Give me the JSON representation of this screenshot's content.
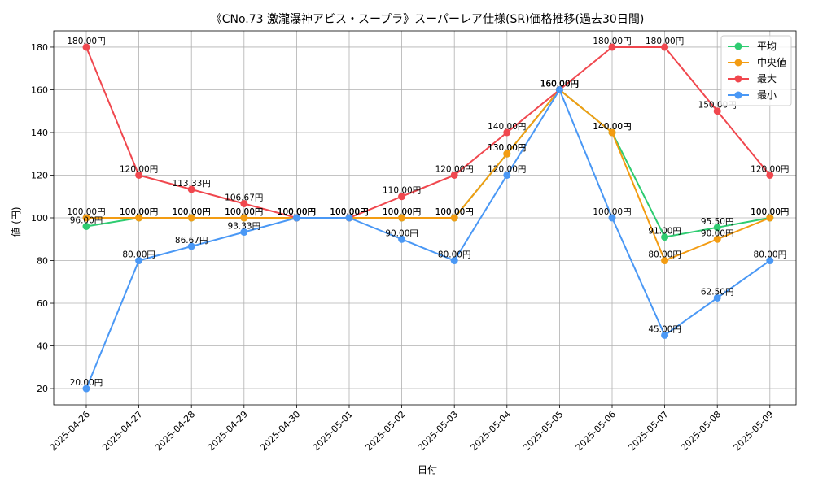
{
  "chart_data": {
    "type": "line",
    "title": "《CNo.73 激瀧瀑神アビス・スープラ》スーパーレア仕様(SR)価格推移(過去30日間)",
    "xlabel": "日付",
    "ylabel": "値 (円)",
    "ylim": [
      12.4,
      187.6
    ],
    "yticks": [
      20,
      40,
      60,
      80,
      100,
      120,
      140,
      160,
      180
    ],
    "grid": true,
    "legend_position": "top-right",
    "value_suffix": "円",
    "categories": [
      "2025-04-26",
      "2025-04-27",
      "2025-04-28",
      "2025-04-29",
      "2025-04-30",
      "2025-05-01",
      "2025-05-02",
      "2025-05-03",
      "2025-05-04",
      "2025-05-05",
      "2025-05-06",
      "2025-05-07",
      "2025-05-08",
      "2025-05-09"
    ],
    "series": [
      {
        "name": "平均",
        "color": "#2ecc71",
        "values": [
          96.0,
          100.0,
          100.0,
          100.0,
          100.0,
          100.0,
          100.0,
          100.0,
          130.0,
          160.0,
          140.0,
          91.0,
          95.5,
          100.0
        ]
      },
      {
        "name": "中央値",
        "color": "#f39c12",
        "values": [
          100.0,
          100.0,
          100.0,
          100.0,
          100.0,
          100.0,
          100.0,
          100.0,
          130.0,
          160.0,
          140.0,
          80.0,
          90.0,
          100.0
        ]
      },
      {
        "name": "最大",
        "color": "#f0474e",
        "values": [
          180.0,
          120.0,
          113.33,
          106.67,
          100.0,
          100.0,
          110.0,
          120.0,
          140.0,
          160.0,
          180.0,
          180.0,
          150.0,
          120.0
        ]
      },
      {
        "name": "最小",
        "color": "#4a98f5",
        "values": [
          20.0,
          80.0,
          86.67,
          93.33,
          100.0,
          100.0,
          90.0,
          80.0,
          120.0,
          160.0,
          100.0,
          45.0,
          62.5,
          80.0
        ]
      }
    ]
  }
}
